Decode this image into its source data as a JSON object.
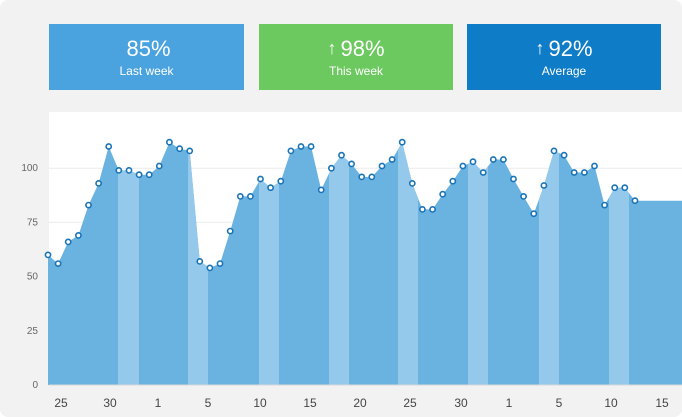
{
  "cards": [
    {
      "value": "85%",
      "label": "Last week",
      "arrow": "",
      "color": "#4aa3df"
    },
    {
      "value": "98%",
      "label": "This week",
      "arrow": "↑",
      "color": "#6cc95f"
    },
    {
      "value": "92%",
      "label": "Average",
      "arrow": "↑",
      "color": "#0e7cc6"
    }
  ],
  "chart_data": {
    "type": "area",
    "y_ticks": [
      0,
      25,
      50,
      75,
      100
    ],
    "ylim": [
      0,
      125
    ],
    "x_tick_labels": [
      "25",
      "30",
      "1",
      "5",
      "10",
      "15",
      "20",
      "25",
      "30",
      "1",
      "5",
      "10",
      "15"
    ],
    "values": [
      60,
      56,
      66,
      69,
      83,
      93,
      110,
      99,
      99,
      97,
      97,
      101,
      112,
      109,
      108,
      57,
      54,
      56,
      71,
      87,
      87,
      95,
      91,
      94,
      108,
      110,
      110,
      90,
      100,
      106,
      102,
      96,
      96,
      101,
      104,
      112,
      93,
      81,
      81,
      88,
      94,
      101,
      103,
      98,
      104,
      104,
      95,
      87,
      79,
      92,
      108,
      106,
      98,
      98,
      101,
      83,
      91,
      91,
      85
    ],
    "colors": {
      "area": "#6ab3e0",
      "band": "#94c9ec",
      "point": "#1873b7",
      "bg": "#ffffff",
      "grid": "#ececec"
    }
  }
}
